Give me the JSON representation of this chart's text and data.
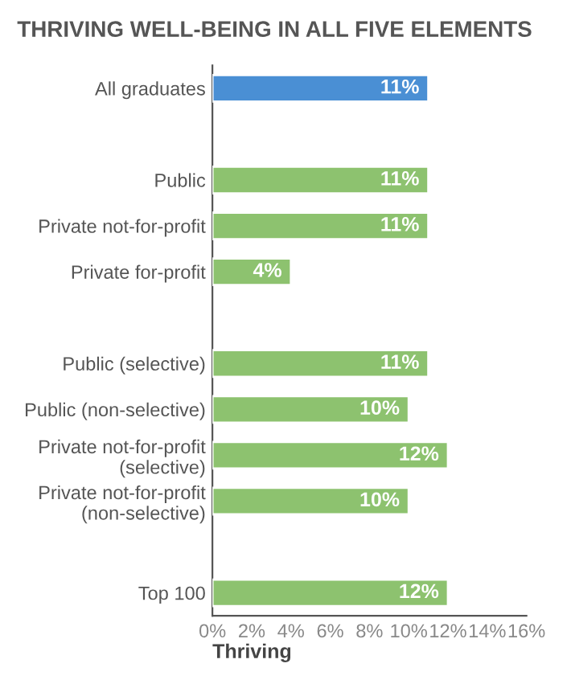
{
  "chart_data": {
    "type": "bar",
    "orientation": "horizontal",
    "title": "THRIVING WELL-BEING IN ALL FIVE ELEMENTS",
    "xlabel": "Thriving",
    "categories": [
      "All graduates",
      null,
      "Public",
      "Private not-for-profit",
      "Private for-profit",
      null,
      "Public (selective)",
      "Public (non-selective)",
      "Private not-for-profit\n(selective)",
      "Private not-for-profit\n(non-selective)",
      null,
      "Top 100"
    ],
    "values": [
      11,
      null,
      11,
      11,
      4,
      null,
      11,
      10,
      12,
      10,
      null,
      12
    ],
    "colors": [
      "#4a8fd4",
      null,
      "#8dc26f",
      "#8dc26f",
      "#8dc26f",
      null,
      "#8dc26f",
      "#8dc26f",
      "#8dc26f",
      "#8dc26f",
      null,
      "#8dc26f"
    ],
    "value_labels": [
      "11%",
      null,
      "11%",
      "11%",
      "4%",
      null,
      "11%",
      "10%",
      "12%",
      "10%",
      null,
      "12%"
    ],
    "xlim": [
      0,
      16
    ],
    "xticks": [
      {
        "value": 0,
        "label": "0%"
      },
      {
        "value": 2,
        "label": "2%"
      },
      {
        "value": 4,
        "label": "4%"
      },
      {
        "value": 6,
        "label": "6%"
      },
      {
        "value": 8,
        "label": "8%"
      },
      {
        "value": 10,
        "label": "10%"
      },
      {
        "value": 12,
        "label": "12%"
      },
      {
        "value": 14,
        "label": "14%"
      },
      {
        "value": 16,
        "label": "16%"
      }
    ],
    "grid": false,
    "legend": false
  }
}
